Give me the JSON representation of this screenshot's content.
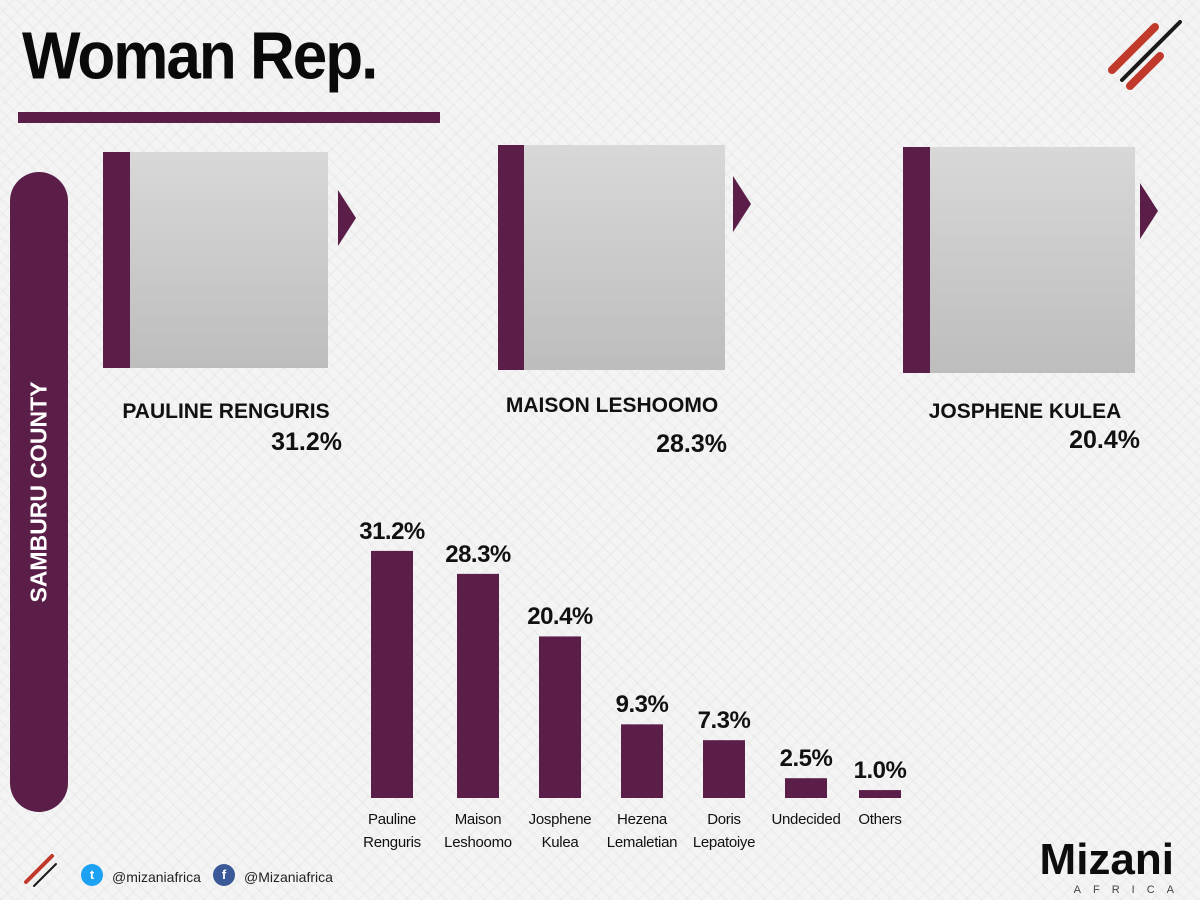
{
  "title": "Woman Rep.",
  "county": "SAMBURU COUNTY",
  "candidates": [
    {
      "name": "PAULINE RENGURIS",
      "share": "31.2%"
    },
    {
      "name": "MAISON LESHOOMO",
      "share": "28.3%"
    },
    {
      "name": "JOSPHENE KULEA",
      "share": "20.4%"
    }
  ],
  "chart_data": {
    "type": "bar",
    "categories": [
      "Pauline Renguris",
      "Maison Leshoomo",
      "Josphene Kulea",
      "Hezena Lemaletian",
      "Doris Lepatoiye",
      "Undecided",
      "Others"
    ],
    "values": [
      31.2,
      28.3,
      20.4,
      9.3,
      7.3,
      2.5,
      1.0
    ],
    "value_labels": [
      "31.2%",
      "28.3%",
      "20.4%",
      "9.3%",
      "7.3%",
      "2.5%",
      "1.0%"
    ],
    "color": "#5a1e48"
  },
  "footer": {
    "twitter": "@mizaniafrica",
    "facebook": "@Mizaniafrica"
  },
  "logo": {
    "name": "Mizani",
    "sub": "AFRICA"
  }
}
